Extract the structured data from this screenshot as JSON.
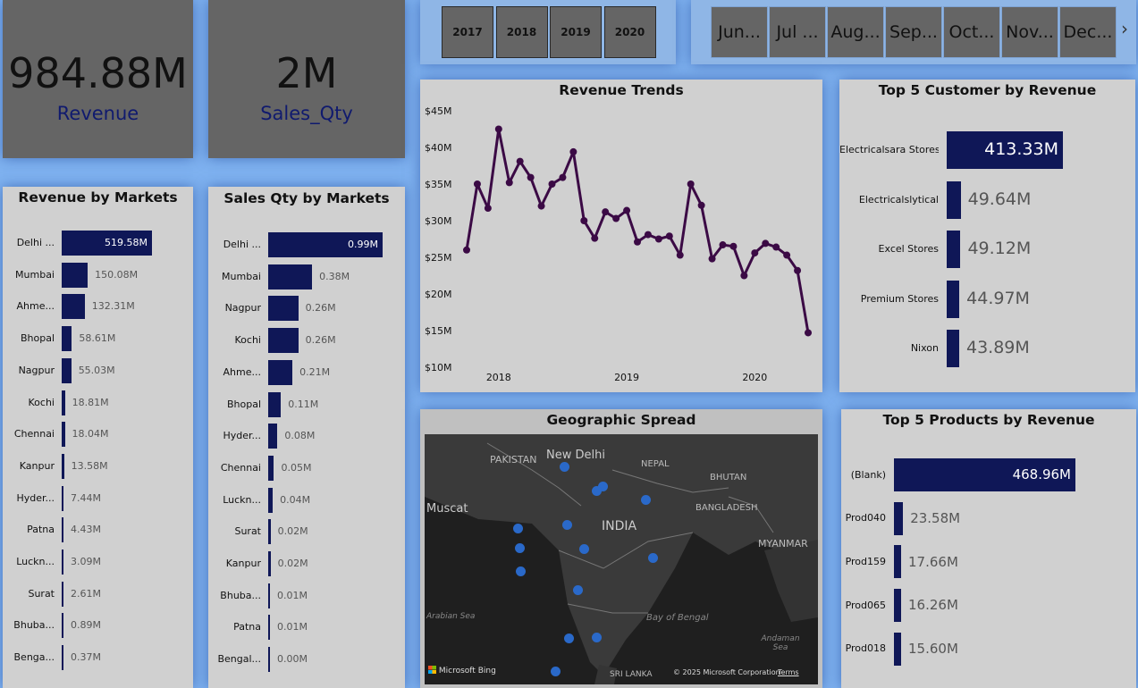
{
  "kpis": {
    "revenue": {
      "value": "984.88M",
      "label": "Revenue"
    },
    "sales_qty": {
      "value": "2M",
      "label": "Sales_Qty"
    }
  },
  "years": [
    "2017",
    "2018",
    "2019",
    "2020"
  ],
  "months": [
    "Jun...",
    "Jul ...",
    "Aug...",
    "Sep...",
    "Oct...",
    "Nov...",
    "Dec..."
  ],
  "months_next_icon": "chevron-right-icon",
  "colors": {
    "bar": "#0f1757",
    "line": "#3b0a45",
    "map_dot": "#2a69c9",
    "panel": "#d0d0d0",
    "kpi_bg": "#656565",
    "page_bg": "#7fb2f0"
  },
  "revenue_by_markets": {
    "title": "Revenue by Markets",
    "chart_data": {
      "type": "bar",
      "categories": [
        "Delhi ...",
        "Mumbai",
        "Ahme...",
        "Bhopal",
        "Nagpur",
        "Kochi",
        "Chennai",
        "Kanpur",
        "Hyder...",
        "Patna",
        "Luckn...",
        "Surat",
        "Bhuba...",
        "Benga..."
      ],
      "values": [
        519.58,
        150.08,
        132.31,
        58.61,
        55.03,
        18.81,
        18.04,
        13.58,
        7.44,
        4.43,
        3.09,
        2.61,
        0.89,
        0.37
      ],
      "value_labels": [
        "519.58M",
        "150.08M",
        "132.31M",
        "58.61M",
        "55.03M",
        "18.81M",
        "18.04M",
        "13.58M",
        "7.44M",
        "4.43M",
        "3.09M",
        "2.61M",
        "0.89M",
        "0.37M"
      ]
    }
  },
  "sales_qty_by_markets": {
    "title": "Sales Qty by Markets",
    "chart_data": {
      "type": "bar",
      "categories": [
        "Delhi ...",
        "Mumbai",
        "Nagpur",
        "Kochi",
        "Ahme...",
        "Bhopal",
        "Hyder...",
        "Chennai",
        "Luckn...",
        "Surat",
        "Kanpur",
        "Bhuba...",
        "Patna",
        "Bengal..."
      ],
      "values": [
        0.99,
        0.38,
        0.26,
        0.26,
        0.21,
        0.11,
        0.08,
        0.05,
        0.04,
        0.02,
        0.02,
        0.01,
        0.01,
        0.0
      ],
      "value_labels": [
        "0.99M",
        "0.38M",
        "0.26M",
        "0.26M",
        "0.21M",
        "0.11M",
        "0.08M",
        "0.05M",
        "0.04M",
        "0.02M",
        "0.02M",
        "0.01M",
        "0.01M",
        "0.00M"
      ]
    }
  },
  "revenue_trends": {
    "title": "Revenue Trends",
    "chart_data": {
      "type": "line",
      "y_ticks": [
        "$10M",
        "$15M",
        "$20M",
        "$25M",
        "$30M",
        "$35M",
        "$40M",
        "$45M"
      ],
      "ylim": [
        10,
        45
      ],
      "x_ticks": [
        "2018",
        "2019",
        "2020"
      ],
      "x": [
        "2017-10",
        "2017-11",
        "2017-12",
        "2018-01",
        "2018-02",
        "2018-03",
        "2018-04",
        "2018-05",
        "2018-06",
        "2018-07",
        "2018-08",
        "2018-09",
        "2018-10",
        "2018-11",
        "2018-12",
        "2019-01",
        "2019-02",
        "2019-03",
        "2019-04",
        "2019-05",
        "2019-06",
        "2019-07",
        "2019-08",
        "2019-09",
        "2019-10",
        "2019-11",
        "2019-12",
        "2020-01",
        "2020-02",
        "2020-03",
        "2020-04",
        "2020-05",
        "2020-06"
      ],
      "values": [
        26.0,
        35.0,
        31.7,
        42.5,
        35.2,
        38.1,
        35.9,
        32.0,
        35.0,
        35.9,
        39.4,
        30.0,
        27.6,
        31.2,
        30.3,
        31.4,
        27.1,
        28.1,
        27.5,
        27.9,
        25.3,
        35.0,
        32.1,
        24.8,
        26.7,
        26.5,
        22.5,
        25.6,
        26.9,
        26.4,
        25.3,
        23.2,
        14.7
      ]
    }
  },
  "top_customers": {
    "title": "Top 5 Customer by Revenue",
    "chart_data": {
      "type": "bar",
      "categories": [
        "Electricalsara Stores",
        "Electricalslytical",
        "Excel Stores",
        "Premium Stores",
        "Nixon"
      ],
      "values": [
        413.33,
        49.64,
        49.12,
        44.97,
        43.89
      ],
      "value_labels": [
        "413.33M",
        "49.64M",
        "49.12M",
        "44.97M",
        "43.89M"
      ]
    }
  },
  "top_products": {
    "title": "Top 5 Products by Revenue",
    "chart_data": {
      "type": "bar",
      "categories": [
        "(Blank)",
        "Prod040",
        "Prod159",
        "Prod065",
        "Prod018"
      ],
      "values": [
        468.96,
        23.58,
        17.66,
        16.26,
        15.6
      ],
      "value_labels": [
        "468.96M",
        "23.58M",
        "17.66M",
        "16.26M",
        "15.60M"
      ]
    }
  },
  "geo": {
    "title": "Geographic Spread",
    "labels": {
      "pakistan": "PAKISTAN",
      "new_delhi": "New Delhi",
      "nepal": "NEPAL",
      "bhutan": "BHUTAN",
      "muscat": "Muscat",
      "india": "INDIA",
      "bangladesh": "BANGLADESH",
      "myanmar": "MYANMAR",
      "arabian_sea": "Arabian Sea",
      "bay_of_bengal": "Bay of Bengal",
      "andaman_sea": "Andaman Sea",
      "sri_lanka": "SRI LANKA"
    },
    "brand": "Microsoft Bing",
    "copyright": "© 2025 Microsoft Corporation",
    "terms": "Terms",
    "market_points": [
      {
        "lat": 28.6,
        "lon": 77.2
      },
      {
        "lat": 26.8,
        "lon": 80.9
      },
      {
        "lat": 26.4,
        "lon": 80.3
      },
      {
        "lat": 25.6,
        "lon": 85.1
      },
      {
        "lat": 23.0,
        "lon": 72.6
      },
      {
        "lat": 21.2,
        "lon": 72.8
      },
      {
        "lat": 19.1,
        "lon": 72.9
      },
      {
        "lat": 23.3,
        "lon": 77.4
      },
      {
        "lat": 21.1,
        "lon": 79.1
      },
      {
        "lat": 20.3,
        "lon": 85.8
      },
      {
        "lat": 17.4,
        "lon": 78.5
      },
      {
        "lat": 13.0,
        "lon": 77.6
      },
      {
        "lat": 13.1,
        "lon": 80.3
      },
      {
        "lat": 10.0,
        "lon": 76.3
      }
    ]
  }
}
